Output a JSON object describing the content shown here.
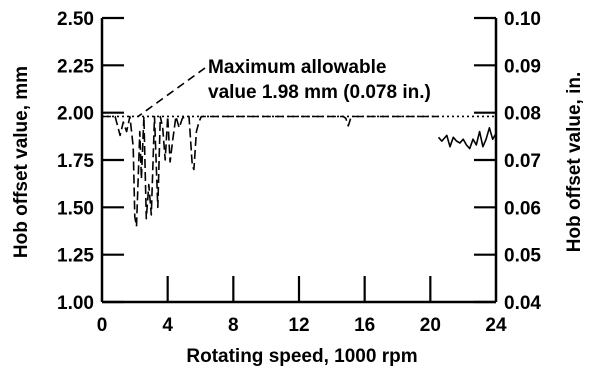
{
  "chart_data": {
    "type": "line",
    "title": "",
    "xlabel": "Rotating speed, 1000 rpm",
    "ylabel": "Hob offset value, mm",
    "y2label": "Hob offset value, in.",
    "xlim": [
      0,
      24
    ],
    "ylim": [
      1.0,
      2.5
    ],
    "y2lim": [
      0.04,
      0.1
    ],
    "x_ticks": [
      "0",
      "4",
      "8",
      "12",
      "16",
      "20",
      "24"
    ],
    "y_ticks": [
      "1.00",
      "1.25",
      "1.50",
      "1.75",
      "2.00",
      "2.25",
      "2.50"
    ],
    "y2_ticks": [
      "0.04",
      "0.05",
      "0.06",
      "0.07",
      "0.08",
      "0.09",
      "0.10"
    ],
    "grid": false,
    "reference_line": {
      "y": 1.98,
      "style": "dotted"
    },
    "annotation": {
      "line1": "Maximum allowable",
      "line2": "value 1.98 mm (0.078 in.)",
      "pointer_target": [
        2.2,
        1.98
      ]
    },
    "series": [
      {
        "style": "dashed",
        "x": [
          0.0,
          0.8,
          1.1,
          1.3,
          1.5,
          1.7,
          1.9,
          2.0,
          2.1,
          2.3,
          2.4,
          2.55,
          2.7,
          2.85,
          3.0,
          3.2,
          3.4,
          3.55,
          3.7,
          3.85,
          4.0,
          4.15,
          4.3,
          4.5,
          4.7,
          4.9,
          5.1,
          5.3,
          5.5,
          5.6,
          5.75,
          5.9,
          6.05,
          6.2,
          7.0,
          10.0,
          14.7,
          14.85,
          15.0,
          15.15,
          15.3,
          18.0,
          20.5
        ],
        "y": [
          1.98,
          1.98,
          1.88,
          1.95,
          1.9,
          1.98,
          1.82,
          1.45,
          1.4,
          1.9,
          1.65,
          1.98,
          1.44,
          1.62,
          1.46,
          1.98,
          1.5,
          1.98,
          1.92,
          1.75,
          1.98,
          1.74,
          1.85,
          1.98,
          1.92,
          1.97,
          1.98,
          1.98,
          1.72,
          1.7,
          1.9,
          1.95,
          1.98,
          1.98,
          1.98,
          1.98,
          1.98,
          1.97,
          1.93,
          1.97,
          1.98,
          1.98,
          1.98
        ]
      },
      {
        "style": "solid",
        "x": [
          20.5,
          20.7,
          21.0,
          21.2,
          21.4,
          21.6,
          21.8,
          22.0,
          22.2,
          22.4,
          22.6,
          22.8,
          23.0,
          23.2,
          23.4,
          23.6,
          23.8,
          24.0
        ],
        "y": [
          1.87,
          1.85,
          1.88,
          1.82,
          1.87,
          1.85,
          1.84,
          1.86,
          1.83,
          1.81,
          1.86,
          1.83,
          1.9,
          1.82,
          1.86,
          1.92,
          1.86,
          1.89
        ]
      }
    ]
  }
}
